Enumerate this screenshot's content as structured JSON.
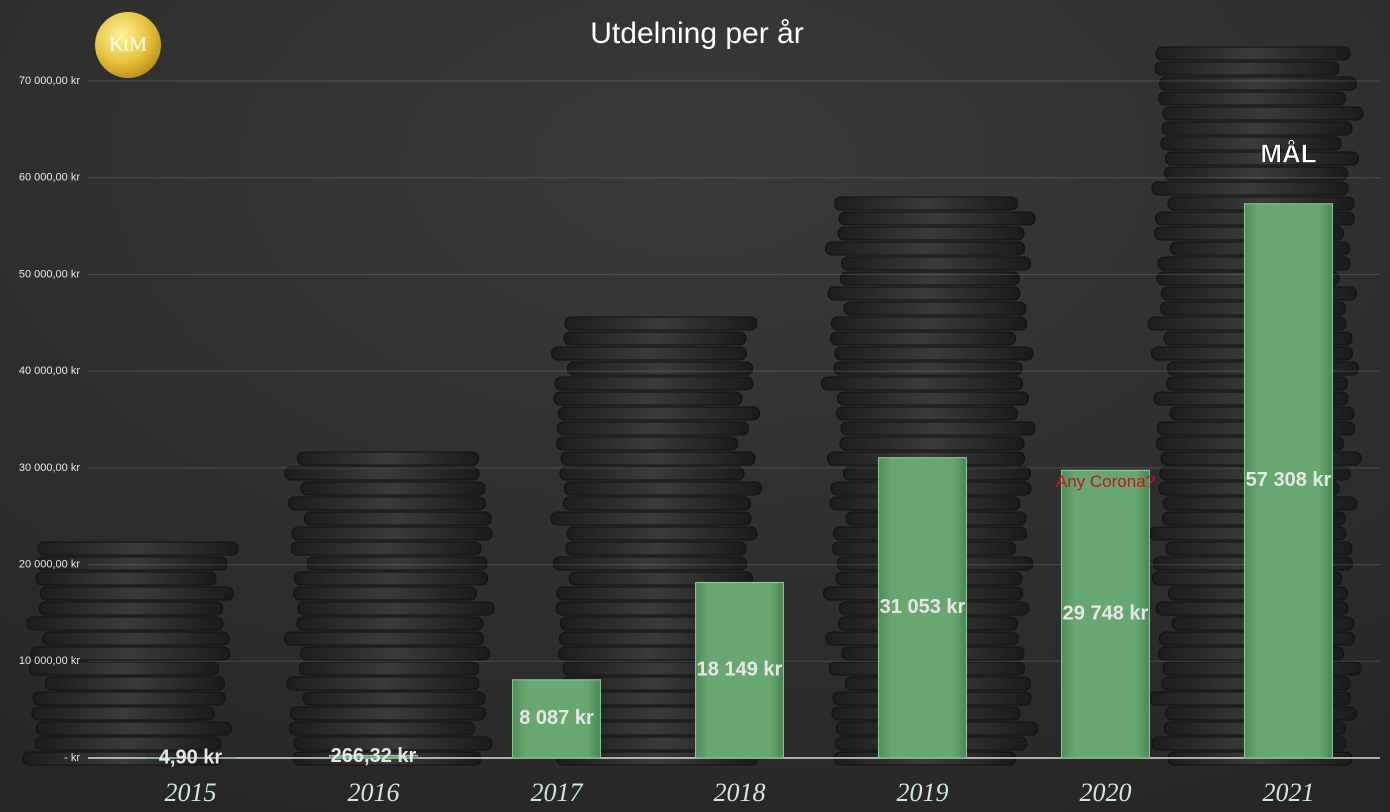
{
  "chart_data": {
    "type": "bar",
    "title": "Utdelning per år",
    "logo": "KtM",
    "categories": [
      "2015",
      "2016",
      "2017",
      "2018",
      "2019",
      "2020",
      "2021"
    ],
    "values": [
      4.9,
      266.32,
      8087,
      18149,
      31053,
      29748,
      57308
    ],
    "value_labels": [
      "4,90 kr",
      "266,32 kr",
      "8 087 kr",
      "18 149 kr",
      "31 053 kr",
      "29 748 kr",
      "57 308 kr"
    ],
    "color": "#62a56c",
    "ylim": [
      0,
      70000
    ],
    "yticks": [
      {
        "value": 0,
        "label": "-   kr"
      },
      {
        "value": 10000,
        "label": "10 000,00 kr"
      },
      {
        "value": 20000,
        "label": "20 000,00 kr"
      },
      {
        "value": 30000,
        "label": "30 000,00 kr"
      },
      {
        "value": 40000,
        "label": "40 000,00 kr"
      },
      {
        "value": 50000,
        "label": "50 000,00 kr"
      },
      {
        "value": 60000,
        "label": "60 000,00 kr"
      },
      {
        "value": 70000,
        "label": "70 000,00 kr"
      }
    ],
    "grid": true,
    "annotations": [
      {
        "text": "Any Corona?",
        "x": "2020",
        "color": "#c0171c"
      },
      {
        "text": "MÅL",
        "x": "2021",
        "color": "#ffffff"
      }
    ]
  }
}
